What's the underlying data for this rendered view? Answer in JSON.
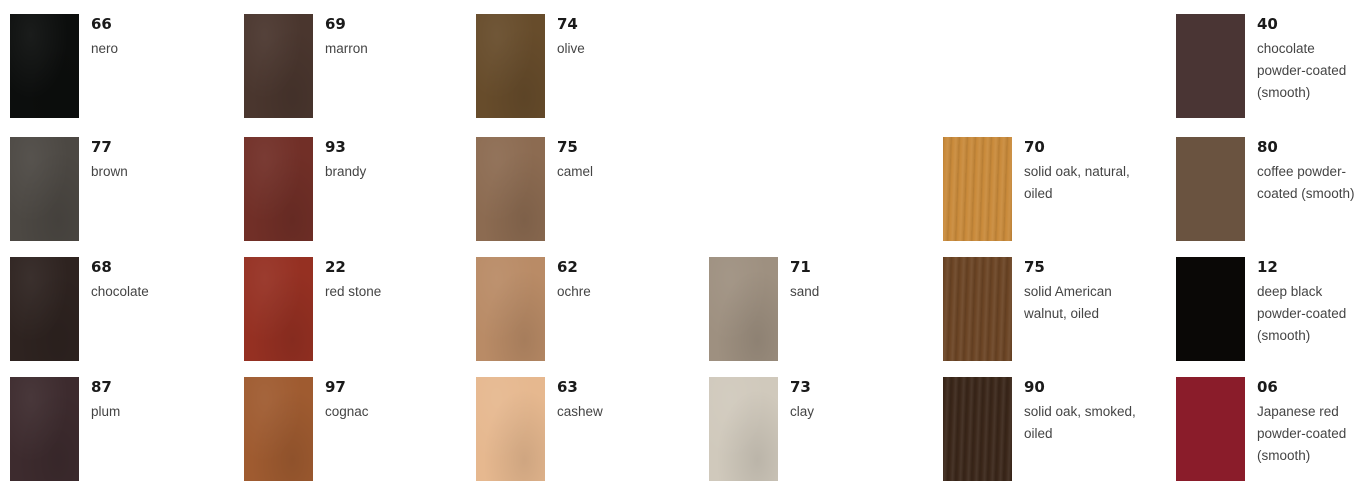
{
  "swatches": [
    {
      "code": "66",
      "name": "nero",
      "color": "#0c0e0d",
      "texture": "leather"
    },
    {
      "code": "69",
      "name": "marron",
      "color": "#4a362e",
      "texture": "leather"
    },
    {
      "code": "74",
      "name": "olive",
      "color": "#674c2b",
      "texture": "leather"
    },
    {
      "code": "40",
      "name": "chocolate powder-coated (smooth)",
      "color": "#4a3534",
      "texture": "smooth"
    },
    {
      "code": "77",
      "name": "brown",
      "color": "#4c4843",
      "texture": "leather"
    },
    {
      "code": "93",
      "name": "brandy",
      "color": "#712f27",
      "texture": "leather"
    },
    {
      "code": "75",
      "name": "camel",
      "color": "#8c6b51",
      "texture": "leather"
    },
    {
      "code": "70",
      "name": "solid oak, natural, oiled",
      "color": "#c98a3a",
      "texture": "wood"
    },
    {
      "code": "80",
      "name": "coffee powder-coated (smooth)",
      "color": "#6a5340",
      "texture": "smooth"
    },
    {
      "code": "68",
      "name": "chocolate",
      "color": "#2e2320",
      "texture": "leather"
    },
    {
      "code": "22",
      "name": "red stone",
      "color": "#953022",
      "texture": "leather"
    },
    {
      "code": "62",
      "name": "ochre",
      "color": "#b98b66",
      "texture": "leather"
    },
    {
      "code": "71",
      "name": "sand",
      "color": "#9e9080",
      "texture": "leather"
    },
    {
      "code": "75",
      "name": "solid American walnut, oiled",
      "color": "#6b4424",
      "texture": "wood"
    },
    {
      "code": "12",
      "name": "deep black powder-coated (smooth)",
      "color": "#0a0806",
      "texture": "smooth"
    },
    {
      "code": "87",
      "name": "plum",
      "color": "#3d2b2e",
      "texture": "leather"
    },
    {
      "code": "97",
      "name": "cognac",
      "color": "#9f5b30",
      "texture": "leather"
    },
    {
      "code": "63",
      "name": "cashew",
      "color": "#e6b88f",
      "texture": "leather"
    },
    {
      "code": "73",
      "name": "clay",
      "color": "#d0c9bc",
      "texture": "leather"
    },
    {
      "code": "90",
      "name": "solid oak, smoked, oiled",
      "color": "#3a2619",
      "texture": "wood"
    },
    {
      "code": "06",
      "name": "Japanese red powder-coated (smooth)",
      "color": "#8a1c2a",
      "texture": "smooth"
    }
  ]
}
